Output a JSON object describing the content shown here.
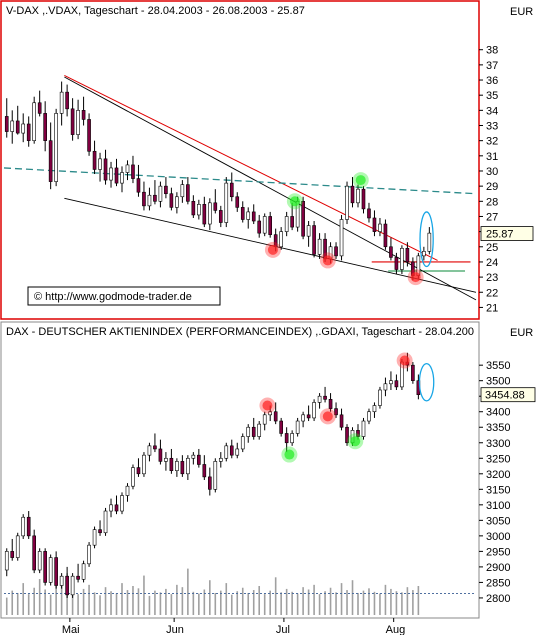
{
  "colors": {
    "panel_border_top": "#dd0000",
    "panel_border": "#888888",
    "candle_body": "#800040",
    "wick": "#000000",
    "trend_red": "#e00000",
    "trend_black": "#000000",
    "dashed_teal": "#2b8a8a",
    "support_green": "#0a8a3a",
    "support_red": "#cc0000",
    "ellipse": "#19a6e6",
    "marker_red": "#ff2020",
    "marker_green": "#22ee22",
    "volume": "#a0a0a0",
    "grid_dotted": "#5070a0",
    "current_label_bg": "#ffffe6"
  },
  "chart_data": [
    {
      "type": "candlestick",
      "title": "V-DAX ,.VDAX, Tageschart - 28.04.2003 - 26.08.2003 - 25.87",
      "currency_label": "EUR",
      "watermark": "© http://www.godmode-trader.de",
      "current_value_label": "25.87",
      "current_value": 25.87,
      "ylim": [
        20.5,
        39.3
      ],
      "y_ticks": [
        21,
        22,
        23,
        24,
        25,
        26,
        27,
        28,
        29,
        30,
        31,
        32,
        33,
        34,
        35,
        36,
        37,
        38
      ],
      "x_range": [
        0,
        86
      ],
      "candles": [
        [
          33.6,
          34.8,
          32.2,
          32.6
        ],
        [
          32.6,
          34.0,
          31.8,
          33.3
        ],
        [
          33.3,
          34.3,
          32.4,
          32.5
        ],
        [
          32.5,
          33.8,
          31.9,
          33.1
        ],
        [
          33.1,
          33.6,
          31.6,
          32.0
        ],
        [
          32.0,
          34.9,
          31.8,
          34.5
        ],
        [
          34.5,
          35.3,
          33.6,
          33.8
        ],
        [
          33.8,
          34.6,
          31.3,
          32.0
        ],
        [
          32.0,
          33.2,
          28.8,
          29.3
        ],
        [
          29.3,
          34.1,
          29.0,
          33.8
        ],
        [
          33.8,
          35.9,
          33.0,
          35.2
        ],
        [
          35.2,
          35.7,
          33.6,
          34.1
        ],
        [
          34.1,
          34.8,
          32.0,
          32.4
        ],
        [
          32.4,
          34.7,
          32.1,
          34.0
        ],
        [
          34.0,
          34.9,
          33.0,
          33.4
        ],
        [
          33.4,
          33.8,
          31.0,
          31.3
        ],
        [
          31.3,
          32.0,
          29.8,
          30.1
        ],
        [
          30.1,
          31.2,
          29.3,
          30.8
        ],
        [
          30.8,
          31.4,
          29.1,
          29.4
        ],
        [
          29.4,
          30.6,
          28.9,
          30.2
        ],
        [
          30.2,
          30.8,
          29.0,
          29.2
        ],
        [
          29.2,
          30.3,
          28.6,
          29.9
        ],
        [
          29.9,
          30.7,
          29.4,
          30.4
        ],
        [
          30.4,
          31.0,
          29.2,
          29.5
        ],
        [
          29.5,
          30.4,
          28.3,
          28.6
        ],
        [
          28.6,
          29.3,
          27.4,
          27.7
        ],
        [
          27.7,
          28.9,
          27.4,
          28.4
        ],
        [
          28.4,
          29.4,
          27.8,
          28.0
        ],
        [
          28.0,
          29.3,
          27.6,
          29.0
        ],
        [
          29.0,
          29.6,
          28.2,
          28.5
        ],
        [
          28.5,
          28.9,
          27.4,
          27.6
        ],
        [
          27.6,
          28.6,
          27.2,
          28.3
        ],
        [
          28.3,
          29.4,
          27.9,
          29.1
        ],
        [
          29.1,
          29.6,
          27.8,
          28.0
        ],
        [
          28.0,
          28.4,
          26.9,
          27.1
        ],
        [
          27.1,
          28.1,
          26.8,
          27.8
        ],
        [
          27.8,
          28.3,
          26.3,
          26.5
        ],
        [
          26.5,
          28.2,
          26.1,
          27.9
        ],
        [
          27.9,
          28.8,
          27.2,
          27.4
        ],
        [
          27.4,
          27.7,
          26.3,
          26.6
        ],
        [
          26.6,
          29.6,
          26.3,
          29.2
        ],
        [
          29.2,
          29.9,
          28.0,
          28.3
        ],
        [
          28.3,
          28.6,
          27.3,
          27.6
        ],
        [
          27.6,
          28.0,
          26.6,
          26.8
        ],
        [
          26.8,
          27.6,
          26.2,
          27.3
        ],
        [
          27.3,
          27.8,
          26.5,
          26.7
        ],
        [
          26.7,
          27.1,
          25.6,
          25.9
        ],
        [
          25.9,
          27.2,
          25.7,
          27.0
        ],
        [
          27.0,
          27.3,
          25.6,
          25.8
        ],
        [
          25.8,
          26.2,
          24.7,
          25.0
        ],
        [
          25.0,
          26.3,
          24.8,
          26.0
        ],
        [
          26.0,
          27.3,
          25.7,
          27.0
        ],
        [
          27.0,
          27.9,
          26.1,
          26.3
        ],
        [
          26.3,
          28.3,
          26.0,
          28.0
        ],
        [
          28.0,
          28.3,
          25.5,
          25.7
        ],
        [
          25.7,
          26.7,
          25.0,
          26.4
        ],
        [
          26.4,
          26.7,
          24.3,
          24.5
        ],
        [
          24.5,
          25.9,
          24.2,
          25.5
        ],
        [
          25.5,
          25.9,
          24.0,
          24.2
        ],
        [
          24.2,
          25.3,
          23.9,
          25.0
        ],
        [
          25.0,
          25.3,
          24.2,
          24.4
        ],
        [
          24.4,
          27.1,
          24.1,
          26.8
        ],
        [
          26.8,
          29.3,
          26.5,
          29.0
        ],
        [
          29.0,
          29.6,
          27.6,
          27.9
        ],
        [
          27.9,
          29.1,
          27.6,
          28.8
        ],
        [
          28.8,
          29.0,
          27.2,
          27.5
        ],
        [
          27.5,
          27.9,
          26.6,
          26.9
        ],
        [
          26.9,
          27.4,
          25.7,
          26.0
        ],
        [
          26.0,
          26.9,
          25.7,
          26.5
        ],
        [
          26.5,
          26.8,
          24.8,
          25.0
        ],
        [
          25.0,
          25.6,
          24.1,
          24.3
        ],
        [
          24.3,
          24.6,
          23.2,
          23.5
        ],
        [
          23.5,
          25.1,
          23.2,
          24.9
        ],
        [
          24.9,
          25.3,
          23.7,
          24.0
        ],
        [
          24.0,
          24.3,
          22.8,
          23.1
        ],
        [
          23.1,
          24.6,
          22.9,
          24.4
        ],
        [
          24.4,
          25.0,
          24.1,
          24.7
        ],
        [
          24.7,
          26.3,
          24.5,
          25.9
        ]
      ],
      "lines": [
        {
          "name": "red-trendline",
          "points": [
            [
              11,
              36.3
            ],
            [
              79,
              24.1
            ]
          ]
        },
        {
          "name": "red-horizontal",
          "points": [
            [
              67,
              24.0
            ],
            [
              85,
              24.0
            ]
          ]
        },
        {
          "name": "green-horizontal",
          "points": [
            [
              70,
              23.4
            ],
            [
              84,
              23.4
            ]
          ]
        },
        {
          "name": "black-upper-line",
          "points": [
            [
              11,
              36.2
            ],
            [
              86,
              21.5
            ]
          ]
        },
        {
          "name": "black-lower-line",
          "points": [
            [
              11,
              28.2
            ],
            [
              86,
              22.0
            ]
          ]
        },
        {
          "name": "teal-dashed-line",
          "points": [
            [
              0,
              30.2
            ],
            [
              86,
              28.5
            ]
          ]
        }
      ],
      "markers": [
        {
          "color": "red",
          "x": 49,
          "y": 24.8
        },
        {
          "color": "green",
          "x": 53,
          "y": 28.0
        },
        {
          "color": "red",
          "x": 59,
          "y": 24.1
        },
        {
          "color": "green",
          "x": 65,
          "y": 29.4
        },
        {
          "color": "red",
          "x": 75,
          "y": 23.0
        }
      ],
      "ellipse": {
        "x": 77,
        "y": 25.5,
        "rx": 1.2,
        "ry": 1.8
      }
    },
    {
      "type": "candlestick",
      "title": "DAX - DEUTSCHER AKTIENINDEX (PERFORMANCEINDEX) ,.GDAXI, Tageschart - 28.04.200",
      "currency_label": "EUR",
      "current_value_label": "3454.88",
      "current_value": 3454.88,
      "ylim": [
        2745,
        3615
      ],
      "y_ticks": [
        2800,
        2850,
        2900,
        2950,
        3000,
        3050,
        3100,
        3150,
        3200,
        3250,
        3300,
        3350,
        3400,
        3450,
        3500,
        3550
      ],
      "x_ticks": [
        {
          "label": "Mai",
          "x": 12
        },
        {
          "label": "Jun",
          "x": 31
        },
        {
          "label": "Jul",
          "x": 51
        },
        {
          "label": "Aug",
          "x": 71
        }
      ],
      "x_range": [
        0,
        86
      ],
      "candles": [
        [
          2890,
          2960,
          2870,
          2950
        ],
        [
          2950,
          2990,
          2920,
          2930
        ],
        [
          2930,
          3010,
          2920,
          3000
        ],
        [
          3000,
          3070,
          2990,
          3060
        ],
        [
          3060,
          3080,
          2990,
          3000
        ],
        [
          3000,
          3020,
          2880,
          2890
        ],
        [
          2890,
          2960,
          2880,
          2950
        ],
        [
          2950,
          2960,
          2840,
          2850
        ],
        [
          2850,
          2940,
          2840,
          2930
        ],
        [
          2930,
          2950,
          2830,
          2840
        ],
        [
          2840,
          2880,
          2830,
          2870
        ],
        [
          2870,
          2900,
          2800,
          2810
        ],
        [
          2810,
          2880,
          2800,
          2870
        ],
        [
          2870,
          2910,
          2850,
          2860
        ],
        [
          2860,
          2920,
          2850,
          2910
        ],
        [
          2910,
          2980,
          2900,
          2970
        ],
        [
          2970,
          3030,
          2960,
          3020
        ],
        [
          3020,
          3050,
          3000,
          3010
        ],
        [
          3010,
          3090,
          3000,
          3080
        ],
        [
          3080,
          3120,
          3060,
          3100
        ],
        [
          3100,
          3130,
          3070,
          3080
        ],
        [
          3080,
          3140,
          3070,
          3130
        ],
        [
          3130,
          3170,
          3110,
          3160
        ],
        [
          3160,
          3230,
          3150,
          3220
        ],
        [
          3220,
          3250,
          3190,
          3200
        ],
        [
          3200,
          3270,
          3190,
          3260
        ],
        [
          3260,
          3300,
          3240,
          3290
        ],
        [
          3290,
          3330,
          3270,
          3280
        ],
        [
          3280,
          3310,
          3230,
          3240
        ],
        [
          3240,
          3270,
          3210,
          3250
        ],
        [
          3250,
          3280,
          3200,
          3210
        ],
        [
          3210,
          3250,
          3190,
          3240
        ],
        [
          3240,
          3260,
          3190,
          3200
        ],
        [
          3200,
          3260,
          3180,
          3250
        ],
        [
          3250,
          3270,
          3230,
          3260
        ],
        [
          3260,
          3280,
          3220,
          3230
        ],
        [
          3230,
          3260,
          3180,
          3190
        ],
        [
          3190,
          3220,
          3130,
          3150
        ],
        [
          3150,
          3250,
          3140,
          3240
        ],
        [
          3240,
          3270,
          3220,
          3250
        ],
        [
          3250,
          3300,
          3240,
          3290
        ],
        [
          3290,
          3310,
          3250,
          3260
        ],
        [
          3260,
          3300,
          3250,
          3280
        ],
        [
          3280,
          3330,
          3270,
          3320
        ],
        [
          3320,
          3360,
          3300,
          3350
        ],
        [
          3350,
          3380,
          3310,
          3320
        ],
        [
          3320,
          3370,
          3310,
          3360
        ],
        [
          3360,
          3400,
          3340,
          3390
        ],
        [
          3390,
          3420,
          3370,
          3400
        ],
        [
          3400,
          3430,
          3360,
          3370
        ],
        [
          3370,
          3380,
          3320,
          3330
        ],
        [
          3330,
          3350,
          3270,
          3300
        ],
        [
          3300,
          3340,
          3290,
          3330
        ],
        [
          3330,
          3380,
          3320,
          3370
        ],
        [
          3370,
          3400,
          3350,
          3390
        ],
        [
          3390,
          3420,
          3370,
          3380
        ],
        [
          3380,
          3440,
          3370,
          3430
        ],
        [
          3430,
          3460,
          3410,
          3450
        ],
        [
          3450,
          3480,
          3430,
          3440
        ],
        [
          3440,
          3460,
          3400,
          3410
        ],
        [
          3410,
          3430,
          3380,
          3390
        ],
        [
          3390,
          3410,
          3340,
          3350
        ],
        [
          3350,
          3360,
          3290,
          3300
        ],
        [
          3300,
          3350,
          3290,
          3340
        ],
        [
          3340,
          3360,
          3310,
          3320
        ],
        [
          3320,
          3380,
          3310,
          3370
        ],
        [
          3370,
          3410,
          3360,
          3400
        ],
        [
          3400,
          3430,
          3380,
          3420
        ],
        [
          3420,
          3480,
          3410,
          3470
        ],
        [
          3470,
          3510,
          3450,
          3490
        ],
        [
          3490,
          3530,
          3470,
          3500
        ],
        [
          3500,
          3520,
          3470,
          3480
        ],
        [
          3480,
          3570,
          3470,
          3560
        ],
        [
          3560,
          3590,
          3530,
          3550
        ],
        [
          3550,
          3560,
          3490,
          3500
        ],
        [
          3500,
          3520,
          3440,
          3454.88
        ]
      ],
      "volume": [
        0.3,
        0.42,
        0.38,
        0.55,
        0.36,
        0.47,
        0.62,
        0.44,
        0.35,
        0.5,
        0.58,
        0.72,
        0.4,
        0.36,
        0.45,
        0.52,
        0.39,
        0.34,
        0.48,
        0.41,
        0.37,
        0.55,
        0.43,
        0.5,
        0.46,
        0.68,
        0.33,
        0.42,
        0.39,
        0.45,
        0.36,
        0.52,
        0.48,
        0.8,
        0.4,
        0.37,
        0.44,
        0.6,
        0.38,
        0.42,
        0.55,
        0.35,
        0.41,
        0.47,
        0.38,
        0.43,
        0.5,
        0.36,
        0.42,
        0.65,
        0.39,
        0.45,
        0.4,
        0.37,
        0.48,
        0.44,
        0.52,
        0.36,
        0.41,
        0.47,
        0.39,
        0.55,
        0.43,
        0.6,
        0.38,
        0.42,
        0.46,
        0.4,
        0.37,
        0.52,
        0.45,
        0.41,
        0.39,
        0.48,
        0.43,
        0.5
      ],
      "volume_avg": 0.37,
      "markers": [
        {
          "color": "red",
          "x": 48,
          "y": 3420
        },
        {
          "color": "green",
          "x": 52,
          "y": 3262
        },
        {
          "color": "red",
          "x": 59,
          "y": 3385
        },
        {
          "color": "green",
          "x": 64,
          "y": 3305
        },
        {
          "color": "red",
          "x": 73,
          "y": 3565
        }
      ],
      "ellipse": {
        "x": 77,
        "y": 3495,
        "rx": 1.3,
        "ry": 60
      }
    }
  ]
}
